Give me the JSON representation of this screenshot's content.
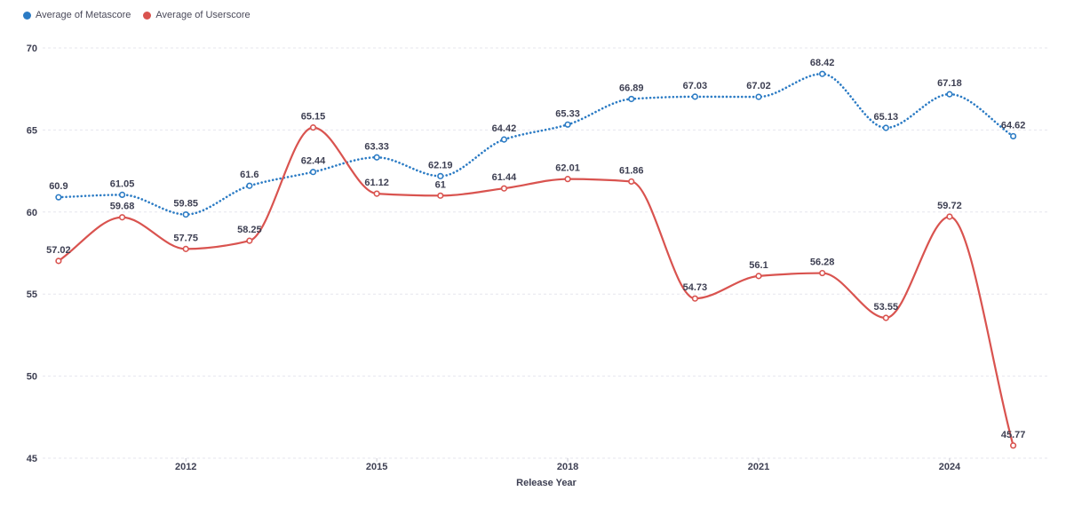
{
  "chart_data": {
    "type": "line",
    "xlabel": "Release Year",
    "ylabel": "",
    "ylim": [
      45,
      70
    ],
    "yticks": [
      "45",
      "50",
      "55",
      "60",
      "65",
      "70"
    ],
    "xlim": [
      2010.5,
      2025.5
    ],
    "xticks": [
      "2012",
      "2015",
      "2018",
      "2021",
      "2024"
    ],
    "x": [
      2011,
      2012,
      2013,
      2014,
      2015,
      2016,
      2017,
      2018,
      2019,
      2020,
      2021,
      2022,
      2023,
      2024,
      2025
    ],
    "grid": true,
    "legend_position": "top-left",
    "series": [
      {
        "name": "Average of Metascore",
        "color": "#2b7bc4",
        "style": "dotted",
        "x": [
          2010,
          2011,
          2012,
          2013,
          2014,
          2015,
          2016,
          2017,
          2018,
          2019,
          2020,
          2021,
          2022,
          2023,
          2024,
          2025
        ],
        "values": [
          60.9,
          61.05,
          59.85,
          61.6,
          62.44,
          63.33,
          62.19,
          64.42,
          65.33,
          66.89,
          67.03,
          67.02,
          68.42,
          65.13,
          67.18,
          64.62
        ],
        "labels": [
          "60.9",
          "61.05",
          "59.85",
          "61.6",
          "62.44",
          "63.33",
          "62.19",
          "64.42",
          "65.33",
          "66.89",
          "67.03",
          "67.02",
          "68.42",
          "65.13",
          "67.18",
          "64.62"
        ]
      },
      {
        "name": "Average of Userscore",
        "color": "#d9534f",
        "style": "solid",
        "x": [
          2010,
          2011,
          2012,
          2013,
          2014,
          2015,
          2016,
          2017,
          2018,
          2019,
          2020,
          2021,
          2022,
          2023,
          2024,
          2025
        ],
        "values": [
          57.02,
          59.68,
          57.75,
          58.25,
          65.15,
          61.12,
          61,
          61.44,
          62.01,
          61.86,
          54.73,
          56.1,
          56.28,
          53.55,
          59.72,
          45.77
        ],
        "labels": [
          "57.02",
          "59.68",
          "57.75",
          "58.25",
          "65.15",
          "61.12",
          "61",
          "61.44",
          "62.01",
          "61.86",
          "54.73",
          "56.1",
          "56.28",
          "53.55",
          "59.72",
          "45.77"
        ]
      }
    ]
  }
}
